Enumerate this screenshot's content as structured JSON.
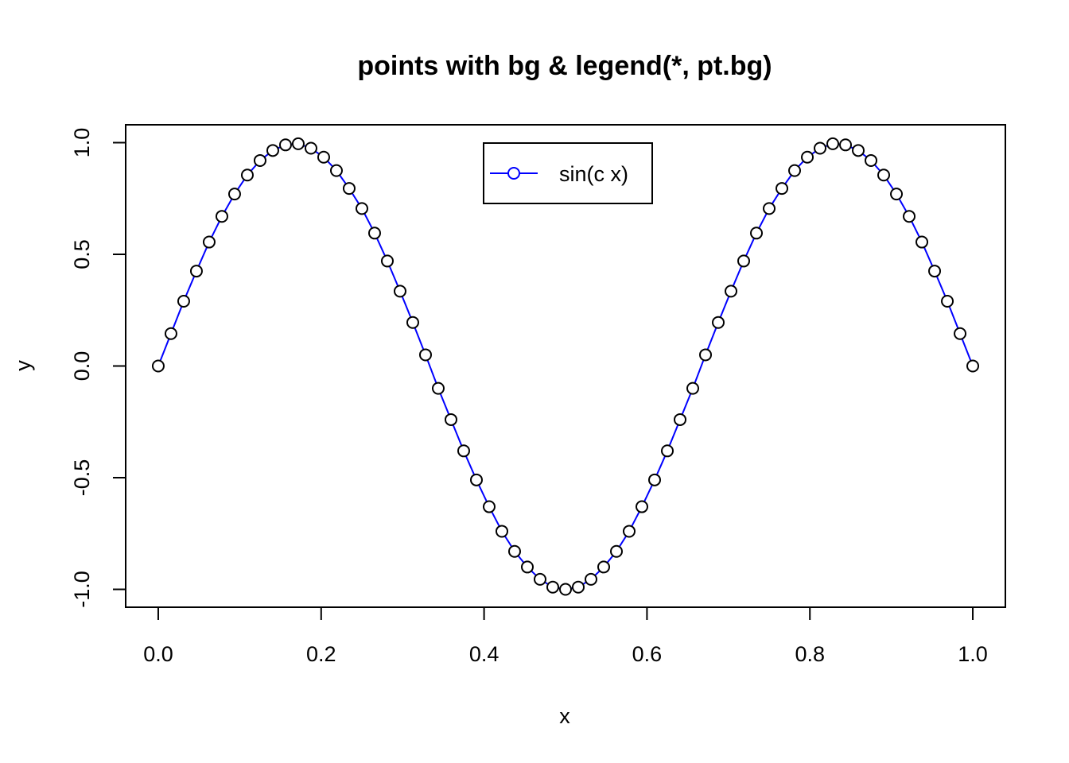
{
  "chart_data": {
    "type": "line",
    "title": "points with bg & legend(*, pt.bg)",
    "xlabel": "x",
    "ylabel": "y",
    "xlim": [
      -0.04,
      1.04
    ],
    "ylim": [
      -1.08,
      1.08
    ],
    "x_ticks": [
      0.0,
      0.2,
      0.4,
      0.6,
      0.8,
      1.0
    ],
    "x_tick_labels": [
      "0.0",
      "0.2",
      "0.4",
      "0.6",
      "0.8",
      "1.0"
    ],
    "y_ticks": [
      -1.0,
      -0.5,
      0.0,
      0.5,
      1.0
    ],
    "y_tick_labels": [
      "-1.0",
      "-0.5",
      "0.0",
      "0.5",
      "1.0"
    ],
    "grid": false,
    "legend_position": "top-center",
    "series": [
      {
        "name": "sin(c x)",
        "line_color": "#0000ff",
        "marker": "open-circle",
        "marker_edge_color": "#000000",
        "marker_fill_color": "#ffffff",
        "x": [
          0.0,
          0.015625,
          0.03125,
          0.046875,
          0.0625,
          0.078125,
          0.09375,
          0.109375,
          0.125,
          0.140625,
          0.15625,
          0.171875,
          0.1875,
          0.203125,
          0.21875,
          0.234375,
          0.25,
          0.265625,
          0.28125,
          0.296875,
          0.3125,
          0.328125,
          0.34375,
          0.359375,
          0.375,
          0.390625,
          0.40625,
          0.421875,
          0.4375,
          0.453125,
          0.46875,
          0.484375,
          0.5,
          0.515625,
          0.53125,
          0.546875,
          0.5625,
          0.578125,
          0.59375,
          0.609375,
          0.625,
          0.640625,
          0.65625,
          0.671875,
          0.6875,
          0.703125,
          0.71875,
          0.734375,
          0.75,
          0.765625,
          0.78125,
          0.796875,
          0.8125,
          0.828125,
          0.84375,
          0.859375,
          0.875,
          0.890625,
          0.90625,
          0.921875,
          0.9375,
          0.953125,
          0.96875,
          0.984375,
          1.0
        ],
        "y": [
          0.0,
          0.145,
          0.29,
          0.425,
          0.555,
          0.67,
          0.77,
          0.855,
          0.92,
          0.965,
          0.99,
          0.995,
          0.975,
          0.935,
          0.875,
          0.795,
          0.705,
          0.595,
          0.47,
          0.335,
          0.195,
          0.05,
          -0.1,
          -0.24,
          -0.38,
          -0.51,
          -0.63,
          -0.74,
          -0.83,
          -0.9,
          -0.955,
          -0.99,
          -1.0,
          -0.99,
          -0.955,
          -0.9,
          -0.83,
          -0.74,
          -0.63,
          -0.51,
          -0.38,
          -0.24,
          -0.1,
          0.05,
          0.195,
          0.335,
          0.47,
          0.595,
          0.705,
          0.795,
          0.875,
          0.935,
          0.975,
          0.995,
          0.99,
          0.965,
          0.92,
          0.855,
          0.77,
          0.67,
          0.555,
          0.425,
          0.29,
          0.145,
          0.0
        ]
      }
    ]
  }
}
